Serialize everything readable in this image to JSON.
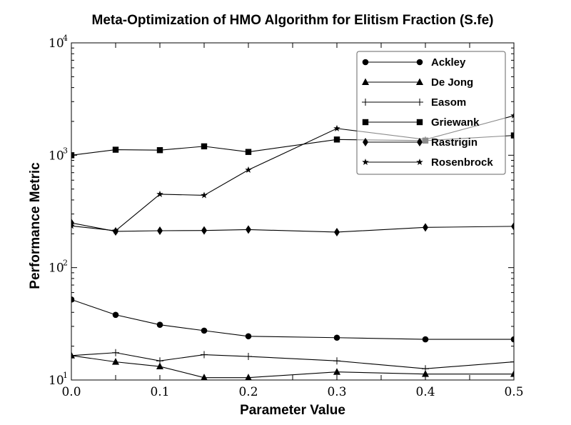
{
  "chart_data": {
    "type": "line",
    "title": "Meta-Optimization of HMO Algorithm for Elitism Fraction (S.fe)",
    "xlabel": "Parameter Value",
    "ylabel": "Performance Metric",
    "xlim": [
      0.0,
      0.5
    ],
    "ylim": [
      10,
      10000
    ],
    "yscale": "log",
    "xticks": [
      "0.0",
      "0.1",
      "0.2",
      "0.3",
      "0.4",
      "0.5"
    ],
    "yticks": [
      {
        "base": "10",
        "exp": "1"
      },
      {
        "base": "10",
        "exp": "2"
      },
      {
        "base": "10",
        "exp": "3"
      },
      {
        "base": "10",
        "exp": "4"
      }
    ],
    "grid": false,
    "legend_position": "top-right",
    "x": [
      0.0,
      0.05,
      0.1,
      0.15,
      0.2,
      0.3,
      0.4,
      0.5
    ],
    "series": [
      {
        "name": "Ackley",
        "marker": "circle",
        "values": [
          52,
          38,
          31,
          27.5,
          24.5,
          23.8,
          23,
          23
        ]
      },
      {
        "name": "De Jong",
        "marker": "triangle",
        "values": [
          16.5,
          14.5,
          13.2,
          10.5,
          10.5,
          11.8,
          11.3,
          11.3
        ]
      },
      {
        "name": "Easom",
        "marker": "plus",
        "values": [
          16.5,
          17.5,
          14.8,
          16.8,
          16.2,
          14.8,
          12.6,
          14.5
        ]
      },
      {
        "name": "Griewank",
        "marker": "square",
        "values": [
          1000,
          1120,
          1110,
          1200,
          1070,
          1380,
          1350,
          1500
        ]
      },
      {
        "name": "Rastrigin",
        "marker": "diamond",
        "values": [
          250,
          210,
          213,
          214,
          218,
          207,
          228,
          233
        ]
      },
      {
        "name": "Rosenbrock",
        "marker": "star",
        "values": [
          235,
          213,
          450,
          440,
          740,
          1730,
          1380,
          2250
        ]
      }
    ]
  }
}
